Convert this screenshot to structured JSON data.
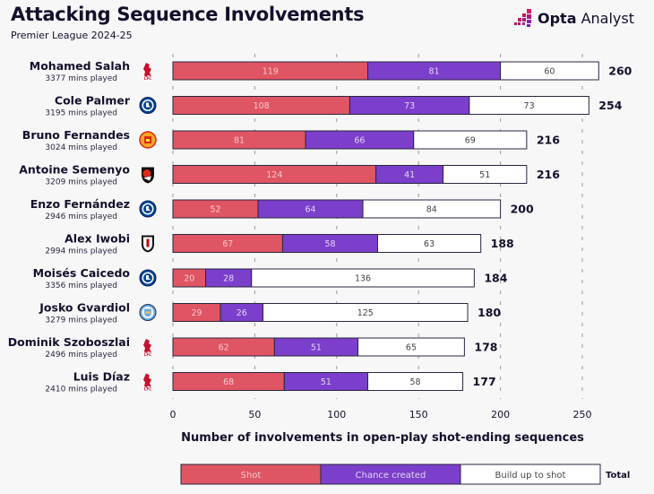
{
  "header": {
    "title": "Attacking Sequence Involvements",
    "subtitle": "Premier League 2024-25",
    "brand_bold": "Opta",
    "brand_regular": "Analyst"
  },
  "colors": {
    "shot": "#e05563",
    "chance_created": "#7b3fcb",
    "build_up": "#ffffff",
    "outline": "#2a2640",
    "text_dark": "#140f2b",
    "brand_pink": "#c2185b"
  },
  "chart_data": {
    "type": "bar",
    "orientation": "horizontal",
    "stacked": true,
    "title": "Attacking Sequence Involvements",
    "subtitle": "Premier League 2024-25",
    "xlabel": "Number of involvements in open-play shot-ending sequences",
    "ylabel": "",
    "xlim": [
      0,
      250
    ],
    "xticks": [
      0,
      50,
      100,
      150,
      200,
      250
    ],
    "grid": "vertical-dashed",
    "legend": {
      "placement": "bottom",
      "entries": [
        "Shot",
        "Chance created",
        "Build up to shot"
      ],
      "total_label": "Total"
    },
    "categories": [
      "Mohamed Salah",
      "Cole Palmer",
      "Bruno Fernandes",
      "Antoine Semenyo",
      "Enzo Fernández",
      "Alex Iwobi",
      "Moisés Caicedo",
      "Josko Gvardiol",
      "Dominik Szoboszlai",
      "Luis Díaz"
    ],
    "players": [
      {
        "name": "Mohamed Salah",
        "mins": "3377 mins played",
        "club": "Liverpool",
        "badge_icon": "liverpool-badge"
      },
      {
        "name": "Cole Palmer",
        "mins": "3195 mins played",
        "club": "Chelsea",
        "badge_icon": "chelsea-badge"
      },
      {
        "name": "Bruno Fernandes",
        "mins": "3024 mins played",
        "club": "Manchester United",
        "badge_icon": "man-utd-badge"
      },
      {
        "name": "Antoine Semenyo",
        "mins": "3209 mins played",
        "club": "Bournemouth",
        "badge_icon": "bournemouth-badge"
      },
      {
        "name": "Enzo Fernández",
        "mins": "2946 mins played",
        "club": "Chelsea",
        "badge_icon": "chelsea-badge"
      },
      {
        "name": "Alex Iwobi",
        "mins": "2994 mins played",
        "club": "Fulham",
        "badge_icon": "fulham-badge"
      },
      {
        "name": "Moisés Caicedo",
        "mins": "3356 mins played",
        "club": "Chelsea",
        "badge_icon": "chelsea-badge"
      },
      {
        "name": "Josko Gvardiol",
        "mins": "3279 mins played",
        "club": "Manchester City",
        "badge_icon": "man-city-badge"
      },
      {
        "name": "Dominik Szoboszlai",
        "mins": "2496 mins played",
        "club": "Liverpool",
        "badge_icon": "liverpool-badge"
      },
      {
        "name": "Luis Díaz",
        "mins": "2410 mins played",
        "club": "Liverpool",
        "badge_icon": "liverpool-badge"
      }
    ],
    "series": [
      {
        "name": "Shot",
        "values": [
          119,
          108,
          81,
          124,
          52,
          67,
          20,
          29,
          62,
          68
        ]
      },
      {
        "name": "Chance created",
        "values": [
          81,
          73,
          66,
          41,
          64,
          58,
          28,
          26,
          51,
          51
        ]
      },
      {
        "name": "Build up to shot",
        "values": [
          60,
          73,
          69,
          51,
          84,
          63,
          136,
          125,
          65,
          58
        ]
      }
    ],
    "totals": [
      260,
      254,
      216,
      216,
      200,
      188,
      184,
      180,
      178,
      177
    ]
  }
}
